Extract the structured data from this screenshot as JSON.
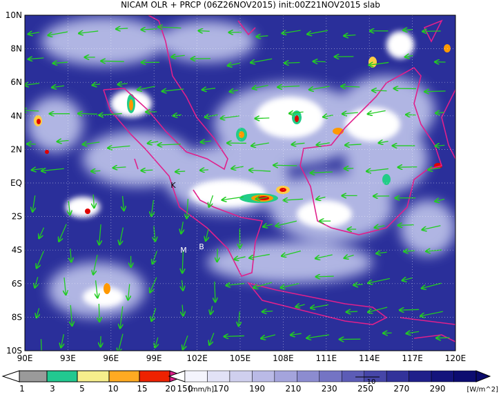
{
  "title": "NICAM OLR + PRCP (06Z26NOV2015) init:00Z21NOV2015 slab",
  "lat_labels": [
    "10N",
    "8N",
    "6N",
    "4N",
    "2N",
    "EQ",
    "2S",
    "4S",
    "6S",
    "8S",
    "10S"
  ],
  "lon_labels": [
    "90E",
    "93E",
    "96E",
    "99E",
    "102E",
    "105E",
    "108E",
    "111E",
    "114E",
    "117E",
    "120E"
  ],
  "markers": [
    "K",
    "M",
    "B"
  ],
  "vector_ref": "10",
  "precip_colorbar": {
    "labels": [
      "1",
      "3",
      "5",
      "10",
      "15",
      "20"
    ],
    "unit": "[mm/h]"
  },
  "olr_colorbar": {
    "labels": [
      "150",
      "170",
      "190",
      "210",
      "230",
      "250",
      "270",
      "290"
    ],
    "unit": "[W/m^2]"
  }
}
